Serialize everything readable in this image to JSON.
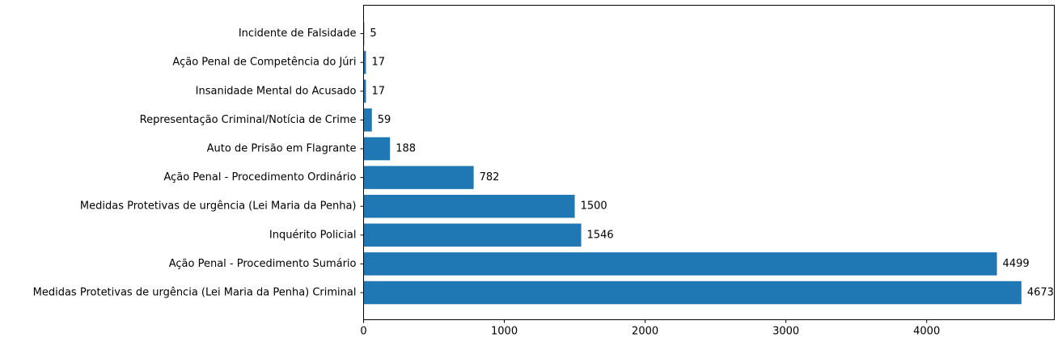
{
  "chart_data": {
    "type": "bar",
    "orientation": "horizontal",
    "title": "",
    "xlabel": "",
    "ylabel": "",
    "categories": [
      "Medidas Protetivas de urgência (Lei Maria da Penha) Criminal",
      "Ação Penal - Procedimento Sumário",
      "Inquérito Policial",
      "Medidas Protetivas de urgência (Lei Maria da Penha)",
      "Ação Penal - Procedimento Ordinário",
      "Auto de Prisão em Flagrante",
      "Representação Criminal/Notícia de Crime",
      "Insanidade Mental do Acusado",
      "Ação Penal de Competência do Júri",
      "Incidente de Falsidade"
    ],
    "values": [
      4673,
      4499,
      1546,
      1500,
      782,
      188,
      59,
      17,
      17,
      5
    ],
    "data_labels": [
      "4673",
      "4499",
      "1546",
      "1500",
      "782",
      "188",
      "59",
      "17",
      "17",
      "5"
    ],
    "xlim": [
      0,
      4906.65
    ],
    "xticks": [
      0,
      1000,
      2000,
      3000,
      4000
    ],
    "xtick_labels": [
      "0",
      "1000",
      "2000",
      "3000",
      "4000"
    ],
    "bar_color": "#1f77b4",
    "grid": false,
    "legend": "none"
  }
}
